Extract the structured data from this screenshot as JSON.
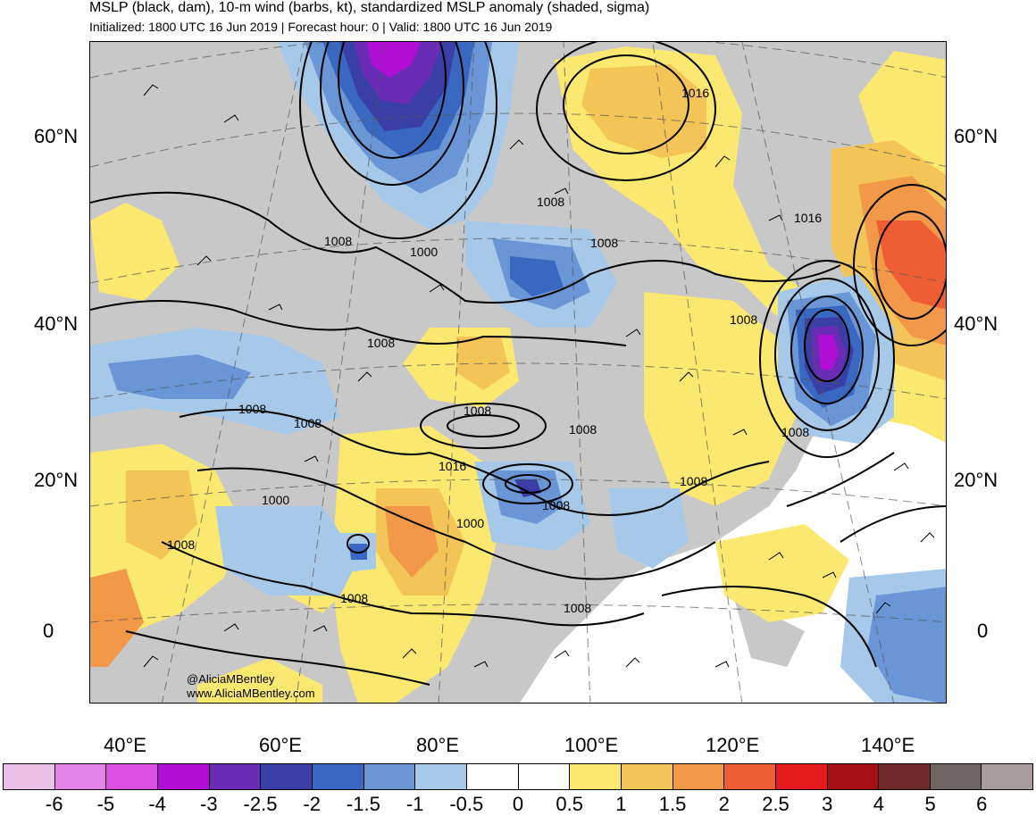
{
  "header": {
    "title": "MSLP (black, dam), 10-m wind (barbs, kt), standardized MSLP anomaly (shaded, sigma)",
    "subtitle": "Initialized: 1800 UTC 16 Jun 2019 | Forecast hour: 0 | Valid: 1800 UTC 16 Jun 2019"
  },
  "latitude_labels": [
    "60°N",
    "40°N",
    "20°N",
    "0"
  ],
  "longitude_labels": [
    "40°E",
    "60°E",
    "80°E",
    "100°E",
    "120°E",
    "140°E"
  ],
  "isobar_labels": [
    "1016",
    "1008",
    "1008",
    "1000",
    "1016",
    "1008",
    "1008",
    "1008",
    "1008",
    "1008",
    "1008",
    "1008",
    "1016",
    "1008",
    "1000",
    "1008",
    "1000",
    "1008",
    "1008",
    "1008",
    "1008"
  ],
  "credit": {
    "handle": "@AliciaMBentley",
    "website": "www.AliciaMBentley.com"
  },
  "colorbar": {
    "labels": [
      "-6",
      "-5",
      "-4",
      "-3",
      "-2.5",
      "-2",
      "-1.5",
      "-1",
      "-0.5",
      "0",
      "0.5",
      "1",
      "1.5",
      "2",
      "2.5",
      "3",
      "4",
      "5",
      "6"
    ],
    "colors": [
      "#ebc0e8",
      "#e683e8",
      "#d94fe0",
      "#b10fd6",
      "#6a2cb4",
      "#3a3fa6",
      "#3a68c0",
      "#6b96d6",
      "#a6c9ea",
      "#ffffff",
      "#ffffff",
      "#fbe871",
      "#f3c458",
      "#f29949",
      "#ef5e33",
      "#e41a1c",
      "#a50f15",
      "#702a28",
      "#6e6464",
      "#a89c9c"
    ]
  },
  "colors": {
    "land": "#c8c8c8",
    "ocean": "#ffffff",
    "isobar": "#000000"
  }
}
